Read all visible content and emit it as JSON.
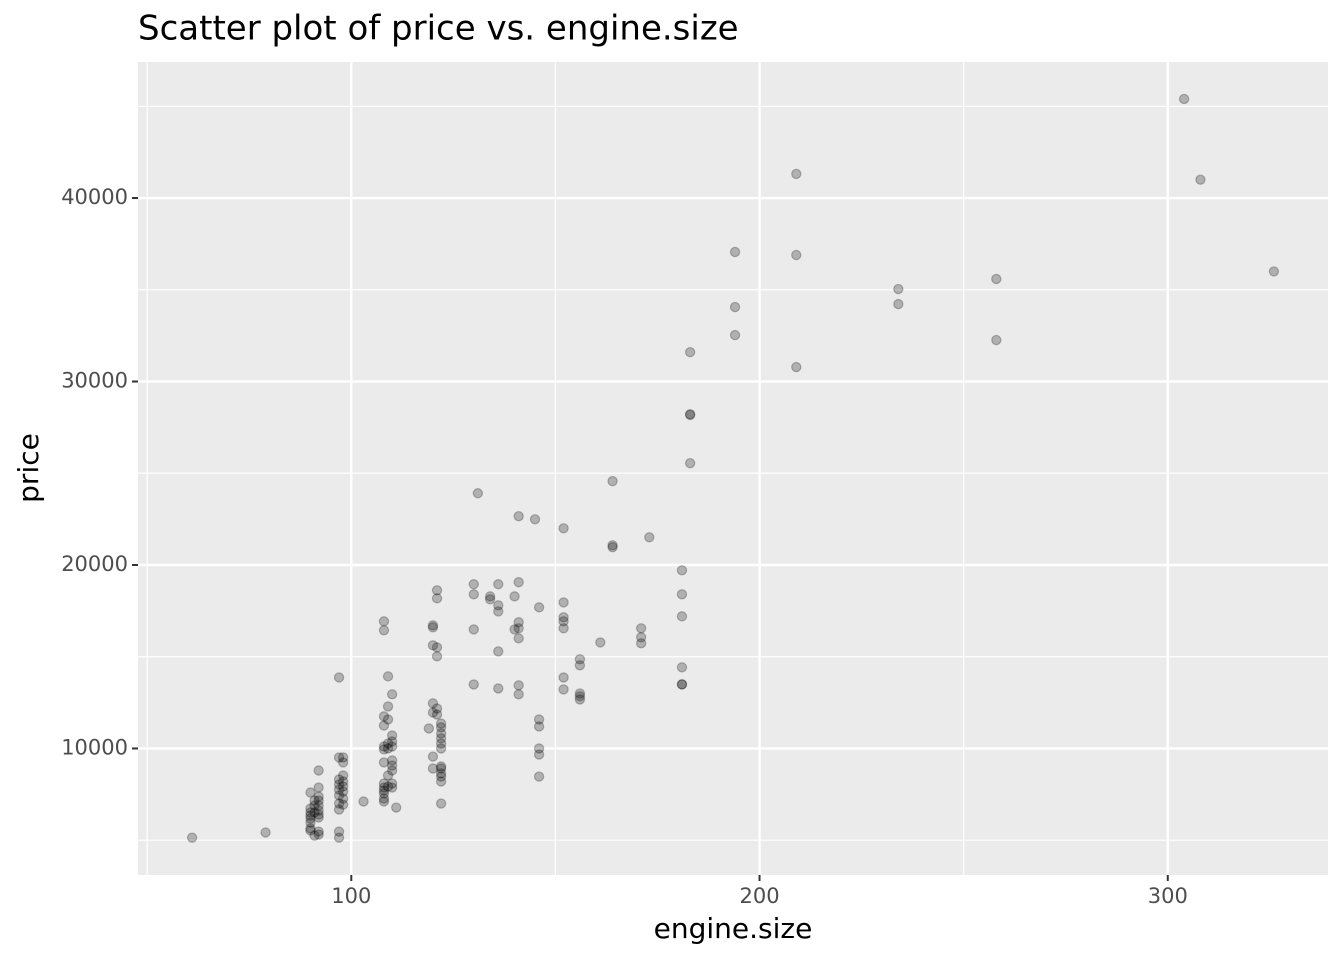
{
  "chart_data": {
    "type": "scatter",
    "title": "Scatter plot of price vs. engine.size",
    "x_label": "engine.size",
    "y_label": "price",
    "xlim": [
      47.75,
      339.25
    ],
    "ylim": [
      3104,
      47414
    ],
    "xticks": [
      100,
      200,
      300
    ],
    "yticks": [
      10000,
      20000,
      30000,
      40000
    ],
    "minor_xticks": [
      50,
      150,
      250
    ],
    "minor_yticks": [
      5000,
      15000,
      25000,
      35000,
      45000
    ],
    "grid": true,
    "color": "#000000",
    "alpha": 0.25,
    "x": [
      304,
      308,
      326,
      209,
      209,
      209,
      194,
      194,
      194,
      234,
      234,
      258,
      258,
      183,
      183,
      183,
      183,
      164,
      164,
      164,
      173,
      181,
      181,
      181,
      181,
      181,
      181,
      171,
      171,
      171,
      161,
      156,
      156,
      156,
      156,
      156,
      152,
      152,
      152,
      152,
      152,
      152,
      152,
      145,
      141,
      146,
      146,
      146,
      146,
      146,
      146,
      131,
      130,
      130,
      130,
      130,
      134,
      134,
      136,
      136,
      136,
      136,
      136,
      140,
      141,
      141,
      141,
      141,
      141,
      141,
      140,
      121,
      121,
      120,
      120,
      120,
      121,
      121,
      120,
      121,
      120,
      121,
      119,
      122,
      122,
      122,
      122,
      122,
      122,
      120,
      120,
      122,
      122,
      122,
      122,
      122,
      122,
      108,
      108,
      109,
      110,
      109,
      108,
      109,
      108,
      110,
      110,
      109,
      108,
      110,
      109,
      108,
      108,
      110,
      110,
      110,
      109,
      108,
      110,
      109,
      110,
      108,
      108,
      108,
      108,
      108,
      111,
      103,
      97,
      97,
      98,
      98,
      97,
      98,
      98,
      97,
      98,
      97,
      98,
      97,
      98,
      97,
      98,
      97,
      97,
      97,
      92,
      92,
      90,
      92,
      92,
      92,
      92,
      92,
      92,
      90,
      90,
      90,
      90,
      90,
      90,
      90,
      91,
      92,
      92,
      91,
      91,
      91,
      79,
      61
    ],
    "y": [
      45400,
      41000,
      36000,
      41315,
      36895,
      30786,
      37060,
      34060,
      32530,
      35040,
      34220,
      35590,
      32260,
      31600,
      28220,
      28176,
      25550,
      24570,
      21075,
      20970,
      21510,
      19710,
      18400,
      17200,
      14420,
      13490,
      13499,
      16550,
      16060,
      15730,
      15780,
      14860,
      14530,
      13000,
      12840,
      12670,
      17960,
      17150,
      16930,
      16550,
      13870,
      13220,
      22000,
      22490,
      22660,
      17690,
      11580,
      11200,
      10000,
      9670,
      8470,
      23910,
      18950,
      18400,
      16490,
      13490,
      18290,
      18130,
      18950,
      17800,
      17470,
      15290,
      13270,
      18290,
      19060,
      16880,
      16550,
      16000,
      13440,
      12950,
      16490,
      18620,
      18180,
      16710,
      16600,
      15620,
      15510,
      15020,
      12460,
      12180,
      11960,
      11850,
      11090,
      11360,
      11150,
      10820,
      10550,
      10270,
      10000,
      9560,
      8910,
      9020,
      8910,
      8640,
      8470,
      8200,
      7000,
      16930,
      16440,
      13930,
      12950,
      12290,
      11750,
      11580,
      11250,
      10710,
      10380,
      10270,
      10110,
      10110,
      10000,
      9950,
      9240,
      9350,
      9070,
      8800,
      8530,
      8090,
      8090,
      7930,
      7870,
      7870,
      7710,
      7550,
      7270,
      7110,
      6780,
      7110,
      13870,
      9510,
      9510,
      9240,
      8310,
      8530,
      8200,
      8040,
      7930,
      7760,
      7650,
      7440,
      7270,
      7000,
      6940,
      6670,
      5470,
      5140,
      8800,
      7870,
      7600,
      7380,
      7160,
      6890,
      6620,
      6400,
      6240,
      6730,
      6510,
      6340,
      6180,
      5960,
      5640,
      5530,
      5250,
      5470,
      5310,
      7160,
      6890,
      6510,
      5420,
      5140
    ]
  }
}
